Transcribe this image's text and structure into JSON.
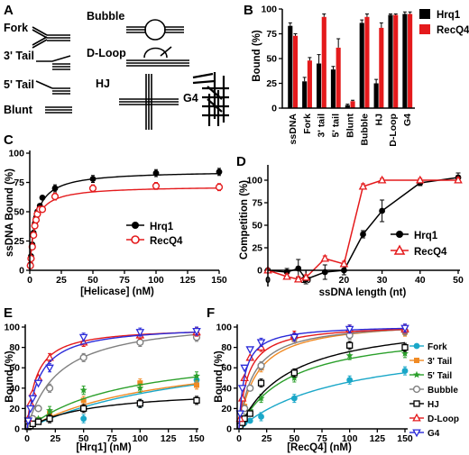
{
  "panels": {
    "A": {
      "label": "A",
      "structures": [
        "Fork",
        "3' Tail",
        "5' Tail",
        "Blunt",
        "Bubble",
        "D-Loop",
        "HJ",
        "G4"
      ]
    },
    "B": {
      "label": "B"
    },
    "C": {
      "label": "C"
    },
    "D": {
      "label": "D"
    },
    "E": {
      "label": "E"
    },
    "F": {
      "label": "F"
    }
  },
  "colors": {
    "hrq1": "#000000",
    "recq4": "#e41a1c",
    "fork": "#1aa7c8",
    "tail3": "#f08a24",
    "tail5": "#2ca02c",
    "bubble": "#808080",
    "hj": "#000000",
    "dloop": "#e41a1c",
    "g4": "#2b2bd9"
  },
  "chart_data": [
    {
      "id": "B",
      "type": "bar",
      "ylabel": "Bound (%)",
      "ylim": [
        0,
        100
      ],
      "yticks": [
        0,
        25,
        50,
        75,
        100
      ],
      "categories": [
        "ssDNA",
        "Fork",
        "3' tail",
        "5' tail",
        "Blunt",
        "Bubble",
        "HJ",
        "D-Loop",
        "G4"
      ],
      "legend_position": "top-right",
      "series": [
        {
          "name": "Hrq1",
          "values": [
            83,
            27,
            45,
            39,
            3,
            86,
            25,
            94,
            95
          ],
          "errors": [
            3,
            4,
            9,
            3,
            1,
            3,
            4,
            1,
            2
          ]
        },
        {
          "name": "RecQ4",
          "values": [
            73,
            48,
            92,
            61,
            7,
            92,
            81,
            94,
            95
          ],
          "errors": [
            2,
            3,
            3,
            9,
            1,
            3,
            5,
            1,
            2
          ]
        }
      ]
    },
    {
      "id": "C",
      "type": "scatter",
      "xlabel": "[Helicase] (nM)",
      "ylabel": "ssDNA Bound (%)",
      "xlim": [
        0,
        150
      ],
      "ylim": [
        0,
        100
      ],
      "xticks": [
        0,
        25,
        50,
        75,
        100,
        125,
        150
      ],
      "yticks": [
        0,
        25,
        50,
        75,
        100
      ],
      "legend_position": "center-right",
      "series": [
        {
          "name": "Hrq1",
          "x": [
            0.5,
            1,
            2,
            3,
            4,
            5,
            6,
            8,
            10,
            20,
            50,
            100,
            150
          ],
          "y": [
            5,
            12,
            22,
            32,
            40,
            45,
            50,
            55,
            62,
            70,
            78,
            83,
            84
          ],
          "fit": {
            "bmax": 85,
            "kd": 4.5
          }
        },
        {
          "name": "RecQ4",
          "x": [
            0.5,
            1,
            2,
            3,
            4,
            5,
            6,
            8,
            10,
            20,
            50,
            100,
            150
          ],
          "y": [
            4,
            10,
            20,
            30,
            38,
            43,
            48,
            52,
            52,
            63,
            70,
            72,
            71
          ],
          "fit": {
            "bmax": 72,
            "kd": 3.8
          }
        }
      ]
    },
    {
      "id": "D",
      "type": "line",
      "xlabel": "ssDNA length (nt)",
      "ylabel": "Competition (%)",
      "xlim": [
        0,
        50
      ],
      "ylim": [
        0,
        110
      ],
      "xticks": [
        0,
        10,
        20,
        30,
        40,
        50
      ],
      "yticks": [
        0,
        25,
        50,
        75,
        100
      ],
      "legend_position": "center-right",
      "series": [
        {
          "name": "Hrq1",
          "x": [
            0,
            5,
            8,
            10,
            15,
            20,
            25,
            30,
            40,
            50
          ],
          "y": [
            0,
            -2,
            2,
            -10,
            -2,
            0,
            40,
            66,
            97,
            103
          ],
          "errors": [
            0,
            4,
            10,
            5,
            8,
            5,
            4,
            12,
            3,
            5
          ]
        },
        {
          "name": "RecQ4",
          "x": [
            0,
            5,
            8,
            10,
            15,
            20,
            25,
            30,
            40,
            50
          ],
          "y": [
            0,
            -7,
            -10,
            -8,
            13,
            7,
            93,
            100,
            100,
            100
          ],
          "errors": [
            0,
            3,
            3,
            3,
            3,
            3,
            3,
            2,
            2,
            3
          ]
        }
      ]
    },
    {
      "id": "E",
      "type": "scatter",
      "xlabel": "[Hrq1] (nM)",
      "ylabel": "Bound (%)",
      "xlim": [
        0,
        150
      ],
      "ylim": [
        0,
        100
      ],
      "xticks": [
        0,
        25,
        50,
        75,
        100,
        125,
        150
      ],
      "yticks": [
        0,
        20,
        40,
        60,
        80,
        100
      ],
      "legend_position": "right",
      "series": [
        {
          "name": "Fork",
          "x": [
            1,
            3,
            5,
            10,
            20,
            50,
            100,
            150
          ],
          "y": [
            2,
            4,
            5,
            8,
            12,
            10,
            25,
            48
          ],
          "fit": {
            "bmax": 90,
            "kd": 160
          }
        },
        {
          "name": "3' Tail",
          "x": [
            1,
            3,
            5,
            10,
            20,
            50,
            100,
            150
          ],
          "y": [
            2,
            4,
            6,
            9,
            15,
            28,
            45,
            43
          ],
          "fit": {
            "bmax": 80,
            "kd": 120
          }
        },
        {
          "name": "5' Tail",
          "x": [
            1,
            3,
            5,
            10,
            20,
            50,
            100,
            150
          ],
          "y": [
            3,
            5,
            7,
            10,
            18,
            38,
            40,
            52
          ],
          "fit": {
            "bmax": 80,
            "kd": 85
          }
        },
        {
          "name": "Bubble",
          "x": [
            1,
            3,
            5,
            10,
            20,
            50,
            100,
            150
          ],
          "y": [
            3,
            6,
            10,
            20,
            40,
            70,
            85,
            90
          ],
          "fit": {
            "bmax": 110,
            "kd": 28
          }
        },
        {
          "name": "HJ",
          "x": [
            1,
            3,
            5,
            10,
            20,
            50,
            100,
            150
          ],
          "y": [
            2,
            3,
            5,
            7,
            10,
            20,
            25,
            28
          ],
          "fit": {
            "bmax": 40,
            "kd": 55
          }
        },
        {
          "name": "D-Loop",
          "x": [
            1,
            3,
            5,
            10,
            20,
            50,
            100,
            150
          ],
          "y": [
            10,
            25,
            35,
            50,
            70,
            85,
            92,
            95
          ],
          "fit": {
            "bmax": 100,
            "kd": 8
          }
        },
        {
          "name": "G4",
          "x": [
            1,
            3,
            5,
            10,
            20,
            50,
            100,
            150
          ],
          "y": [
            8,
            20,
            30,
            45,
            60,
            90,
            95,
            96
          ],
          "fit": {
            "bmax": 102,
            "kd": 11
          }
        }
      ]
    },
    {
      "id": "F",
      "type": "scatter",
      "xlabel": "[RecQ4] (nM)",
      "ylabel": "Bound (%)",
      "xlim": [
        0,
        150
      ],
      "ylim": [
        0,
        100
      ],
      "xticks": [
        0,
        25,
        50,
        75,
        100,
        125,
        150
      ],
      "yticks": [
        0,
        20,
        40,
        60,
        80,
        100
      ],
      "legend_position": "right",
      "series": [
        {
          "name": "Fork",
          "x": [
            1,
            3,
            5,
            10,
            20,
            50,
            100,
            150
          ],
          "y": [
            2,
            4,
            6,
            8,
            12,
            30,
            48,
            57
          ],
          "fit": {
            "bmax": 90,
            "kd": 95
          }
        },
        {
          "name": "3' Tail",
          "x": [
            1,
            3,
            5,
            10,
            20,
            50,
            100,
            150
          ],
          "y": [
            5,
            12,
            22,
            40,
            60,
            88,
            95,
            95
          ],
          "fit": {
            "bmax": 108,
            "kd": 16
          }
        },
        {
          "name": "5' Tail",
          "x": [
            1,
            3,
            5,
            10,
            20,
            50,
            100,
            150
          ],
          "y": [
            3,
            7,
            12,
            18,
            30,
            50,
            72,
            74
          ],
          "fit": {
            "bmax": 100,
            "kd": 45
          }
        },
        {
          "name": "Bubble",
          "x": [
            1,
            3,
            5,
            10,
            20,
            50,
            100,
            150
          ],
          "y": [
            5,
            12,
            20,
            40,
            62,
            90,
            92,
            96
          ],
          "fit": {
            "bmax": 106,
            "kd": 13
          }
        },
        {
          "name": "HJ",
          "x": [
            1,
            3,
            5,
            10,
            20,
            50,
            100,
            150
          ],
          "y": [
            3,
            6,
            10,
            15,
            45,
            55,
            82,
            80
          ],
          "fit": {
            "bmax": 110,
            "kd": 45
          }
        },
        {
          "name": "D-Loop",
          "x": [
            1,
            3,
            5,
            10,
            20,
            50,
            100,
            150
          ],
          "y": [
            10,
            30,
            50,
            70,
            80,
            92,
            98,
            98
          ],
          "fit": {
            "bmax": 103,
            "kd": 8
          }
        },
        {
          "name": "G4",
          "x": [
            1,
            3,
            5,
            10,
            20,
            50,
            100,
            150
          ],
          "y": [
            15,
            40,
            60,
            78,
            85,
            90,
            98,
            99
          ],
          "fit": {
            "bmax": 102,
            "kd": 5
          }
        }
      ]
    }
  ]
}
